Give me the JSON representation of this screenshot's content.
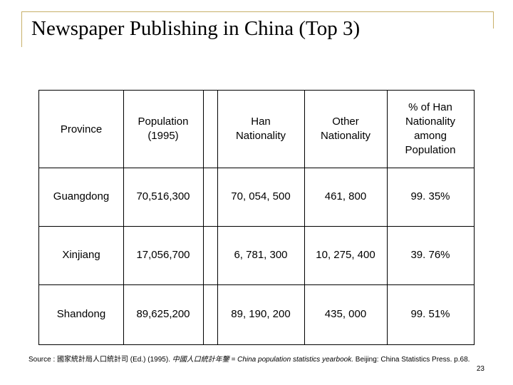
{
  "title": "Newspaper Publishing in China (Top 3)",
  "table": {
    "headers": [
      "Province",
      "Population (1995)",
      "Han Nationality",
      "Other Nationality",
      "% of Han Nationality among Population"
    ],
    "rows": [
      [
        "Guangdong",
        "70,516,300",
        "70, 054, 500",
        "461, 800",
        "99. 35%"
      ],
      [
        "Xinjiang",
        "17,056,700",
        "6, 781, 300",
        "10, 275, 400",
        "39. 76%"
      ],
      [
        "Shandong",
        "89,625,200",
        "89, 190, 200",
        "435, 000",
        "99. 51%"
      ]
    ]
  },
  "source": {
    "prefix": "Source : 國家統計局人口統計司 (Ed.) (1995).",
    "italic": "中國人口統計年鑒 = China population statistics yearbook.",
    "suffix": "Beijing: China Statistics Press. p.68."
  },
  "page_number": "23"
}
